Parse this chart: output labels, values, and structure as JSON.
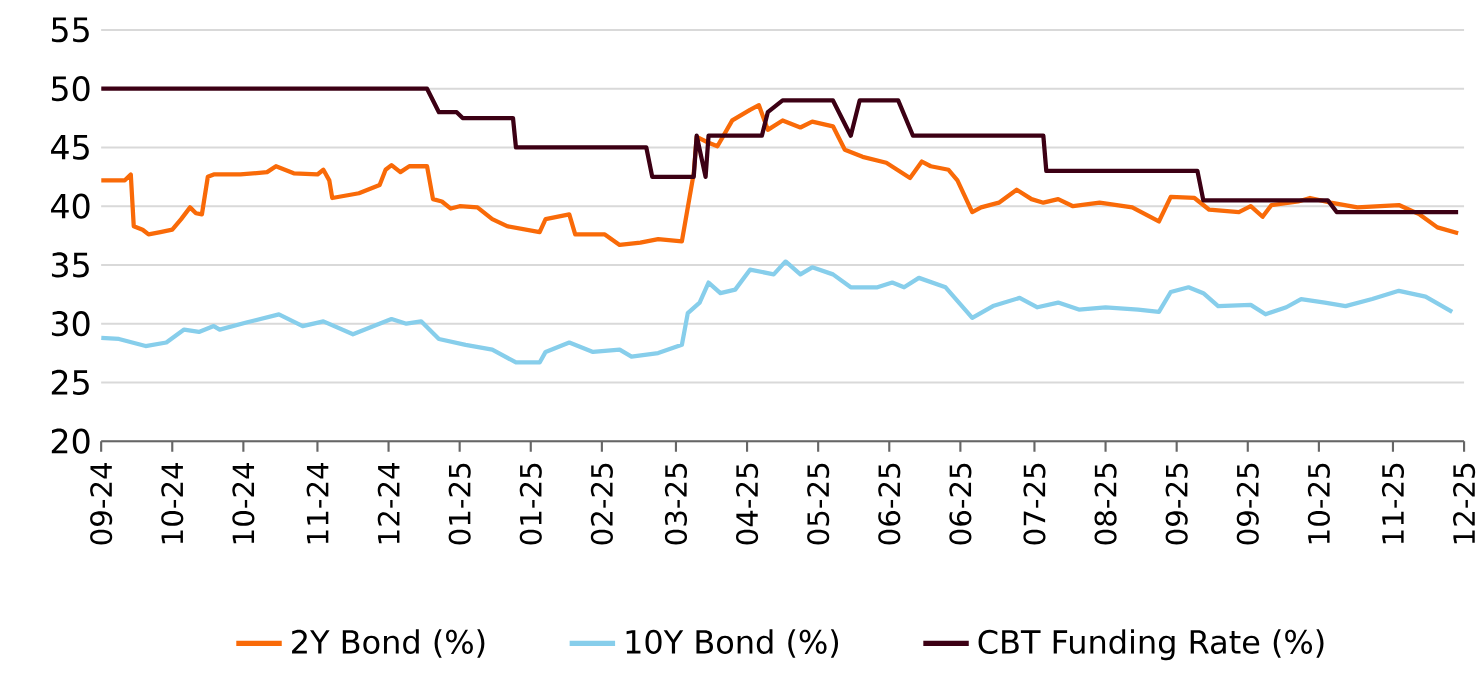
{
  "chart_data": {
    "type": "line",
    "xlim": [
      "2024-09-08",
      "2025-12-12"
    ],
    "xticks": [
      {
        "value": "2024-09-08",
        "label": "09-24"
      },
      {
        "value": "2024-10-02",
        "label": "10-24"
      },
      {
        "value": "2024-10-26",
        "label": "10-24"
      },
      {
        "value": "2024-11-20",
        "label": "11-24"
      },
      {
        "value": "2024-12-14",
        "label": "12-24"
      },
      {
        "value": "2025-01-07",
        "label": "01-25"
      },
      {
        "value": "2025-01-31",
        "label": "01-25"
      },
      {
        "value": "2025-02-24",
        "label": "02-25"
      },
      {
        "value": "2025-03-21",
        "label": "03-25"
      },
      {
        "value": "2025-04-14",
        "label": "04-25"
      },
      {
        "value": "2025-05-08",
        "label": "05-25"
      },
      {
        "value": "2025-06-01",
        "label": "06-25"
      },
      {
        "value": "2025-06-25",
        "label": "06-25"
      },
      {
        "value": "2025-07-20",
        "label": "07-25"
      },
      {
        "value": "2025-08-13",
        "label": "08-25"
      },
      {
        "value": "2025-09-06",
        "label": "09-25"
      },
      {
        "value": "2025-09-30",
        "label": "09-25"
      },
      {
        "value": "2025-10-24",
        "label": "10-25"
      },
      {
        "value": "2025-11-18",
        "label": "11-25"
      },
      {
        "value": "2025-12-12",
        "label": "12-25"
      }
    ],
    "ylim": [
      20,
      55
    ],
    "yticks": [
      20,
      25,
      30,
      35,
      40,
      45,
      50,
      55
    ],
    "grid": "y",
    "legend": "bottom",
    "series": [
      {
        "name": "2Y Bond (%)",
        "color": "#f96a08",
        "x": [
          "2024-09-08",
          "2024-09-16",
          "2024-09-18",
          "2024-09-19",
          "2024-09-22",
          "2024-09-24",
          "2024-09-28",
          "2024-10-02",
          "2024-10-05",
          "2024-10-08",
          "2024-10-10",
          "2024-10-12",
          "2024-10-14",
          "2024-10-16",
          "2024-10-25",
          "2024-11-03",
          "2024-11-06",
          "2024-11-12",
          "2024-11-20",
          "2024-11-22",
          "2024-11-24",
          "2024-11-25",
          "2024-12-04",
          "2024-12-11",
          "2024-12-13",
          "2024-12-15",
          "2024-12-18",
          "2024-12-21",
          "2024-12-27",
          "2024-12-29",
          "2025-01-01",
          "2025-01-04",
          "2025-01-07",
          "2025-01-13",
          "2025-01-18",
          "2025-01-23",
          "2025-02-03",
          "2025-02-05",
          "2025-02-13",
          "2025-02-15",
          "2025-02-25",
          "2025-03-02",
          "2025-03-09",
          "2025-03-15",
          "2025-03-23",
          "2025-03-27",
          "2025-03-28",
          "2025-04-01",
          "2025-04-04",
          "2025-04-09",
          "2025-04-15",
          "2025-04-18",
          "2025-04-21",
          "2025-04-26",
          "2025-05-02",
          "2025-05-06",
          "2025-05-13",
          "2025-05-17",
          "2025-05-23",
          "2025-05-31",
          "2025-06-08",
          "2025-06-12",
          "2025-06-15",
          "2025-06-21",
          "2025-06-24",
          "2025-06-29",
          "2025-07-02",
          "2025-07-08",
          "2025-07-14",
          "2025-07-19",
          "2025-07-23",
          "2025-07-28",
          "2025-08-02",
          "2025-08-11",
          "2025-08-22",
          "2025-08-31",
          "2025-09-04",
          "2025-09-12",
          "2025-09-17",
          "2025-09-27",
          "2025-10-01",
          "2025-10-05",
          "2025-10-08",
          "2025-10-17",
          "2025-10-21",
          "2025-10-28",
          "2025-11-06",
          "2025-11-20",
          "2025-11-27",
          "2025-12-03",
          "2025-12-10"
        ],
        "values": [
          42.2,
          42.2,
          42.7,
          38.3,
          38.0,
          37.6,
          37.8,
          38.0,
          38.9,
          39.9,
          39.4,
          39.3,
          42.5,
          42.7,
          42.7,
          42.9,
          43.4,
          42.8,
          42.7,
          43.1,
          42.2,
          40.7,
          41.1,
          41.8,
          43.1,
          43.5,
          42.9,
          43.4,
          43.4,
          40.6,
          40.4,
          39.8,
          40.0,
          39.9,
          38.9,
          38.3,
          37.8,
          38.9,
          39.3,
          37.6,
          37.6,
          36.7,
          36.9,
          37.2,
          37.0,
          42.8,
          45.9,
          45.4,
          45.1,
          47.3,
          48.2,
          48.6,
          46.5,
          47.3,
          46.7,
          47.2,
          46.8,
          44.8,
          44.2,
          43.7,
          42.4,
          43.8,
          43.4,
          43.1,
          42.2,
          39.5,
          39.9,
          40.3,
          41.4,
          40.6,
          40.3,
          40.6,
          40.0,
          40.3,
          39.9,
          38.7,
          40.8,
          40.7,
          39.7,
          39.5,
          40.0,
          39.1,
          40.1,
          40.4,
          40.7,
          40.3,
          39.9,
          40.1,
          39.3,
          38.2,
          37.7
        ]
      },
      {
        "name": "10Y Bond (%)",
        "color": "#87ceeb",
        "x": [
          "2024-09-08",
          "2024-09-14",
          "2024-09-23",
          "2024-09-30",
          "2024-10-06",
          "2024-10-11",
          "2024-10-16",
          "2024-10-18",
          "2024-10-27",
          "2024-11-07",
          "2024-11-15",
          "2024-11-22",
          "2024-12-02",
          "2024-12-09",
          "2024-12-15",
          "2024-12-20",
          "2024-12-25",
          "2024-12-31",
          "2025-01-09",
          "2025-01-18",
          "2025-01-26",
          "2025-02-03",
          "2025-02-05",
          "2025-02-13",
          "2025-02-21",
          "2025-03-02",
          "2025-03-06",
          "2025-03-15",
          "2025-03-23",
          "2025-03-25",
          "2025-03-29",
          "2025-04-01",
          "2025-04-05",
          "2025-04-10",
          "2025-04-15",
          "2025-04-23",
          "2025-04-27",
          "2025-05-02",
          "2025-05-06",
          "2025-05-13",
          "2025-05-19",
          "2025-05-28",
          "2025-06-02",
          "2025-06-06",
          "2025-06-11",
          "2025-06-20",
          "2025-06-29",
          "2025-07-06",
          "2025-07-15",
          "2025-07-21",
          "2025-07-28",
          "2025-08-04",
          "2025-08-13",
          "2025-08-24",
          "2025-08-31",
          "2025-09-04",
          "2025-09-10",
          "2025-09-15",
          "2025-09-20",
          "2025-10-01",
          "2025-10-06",
          "2025-10-13",
          "2025-10-18",
          "2025-10-26",
          "2025-11-02",
          "2025-11-11",
          "2025-11-20",
          "2025-11-29",
          "2025-12-08"
        ],
        "values": [
          28.8,
          28.7,
          28.1,
          28.4,
          29.5,
          29.3,
          29.8,
          29.5,
          30.1,
          30.8,
          29.8,
          30.2,
          29.1,
          29.8,
          30.4,
          30.0,
          30.2,
          28.7,
          28.2,
          27.8,
          26.7,
          26.7,
          27.6,
          28.4,
          27.6,
          27.8,
          27.2,
          27.5,
          28.2,
          30.9,
          31.8,
          33.5,
          32.6,
          32.9,
          34.6,
          34.2,
          35.3,
          34.2,
          34.8,
          34.2,
          33.1,
          33.1,
          33.5,
          33.1,
          33.9,
          33.1,
          30.5,
          31.5,
          32.2,
          31.4,
          31.8,
          31.2,
          31.4,
          31.2,
          31.0,
          32.7,
          33.1,
          32.6,
          31.5,
          31.6,
          30.8,
          31.4,
          32.1,
          31.8,
          31.5,
          32.1,
          32.8,
          32.3,
          31.0
        ]
      },
      {
        "name": "CBT Funding Rate (%)",
        "color": "#3c0014",
        "x": [
          "2024-09-08",
          "2024-12-27",
          "2024-12-31",
          "2025-01-06",
          "2025-01-08",
          "2025-01-25",
          "2025-01-26",
          "2025-03-11",
          "2025-03-13",
          "2025-03-27",
          "2025-03-28",
          "2025-03-31",
          "2025-04-01",
          "2025-04-19",
          "2025-04-21",
          "2025-04-26",
          "2025-05-13",
          "2025-05-19",
          "2025-05-22",
          "2025-06-04",
          "2025-06-09",
          "2025-07-23",
          "2025-07-24",
          "2025-09-13",
          "2025-09-15",
          "2025-10-27",
          "2025-10-30",
          "2025-12-10"
        ],
        "values": [
          50,
          50,
          48,
          48,
          47.5,
          47.5,
          45,
          45,
          42.5,
          42.5,
          46,
          42.5,
          46,
          46,
          48,
          49,
          49,
          46,
          49,
          49,
          46,
          46,
          43,
          43,
          40.5,
          40.5,
          39.5,
          39.5
        ]
      }
    ]
  }
}
